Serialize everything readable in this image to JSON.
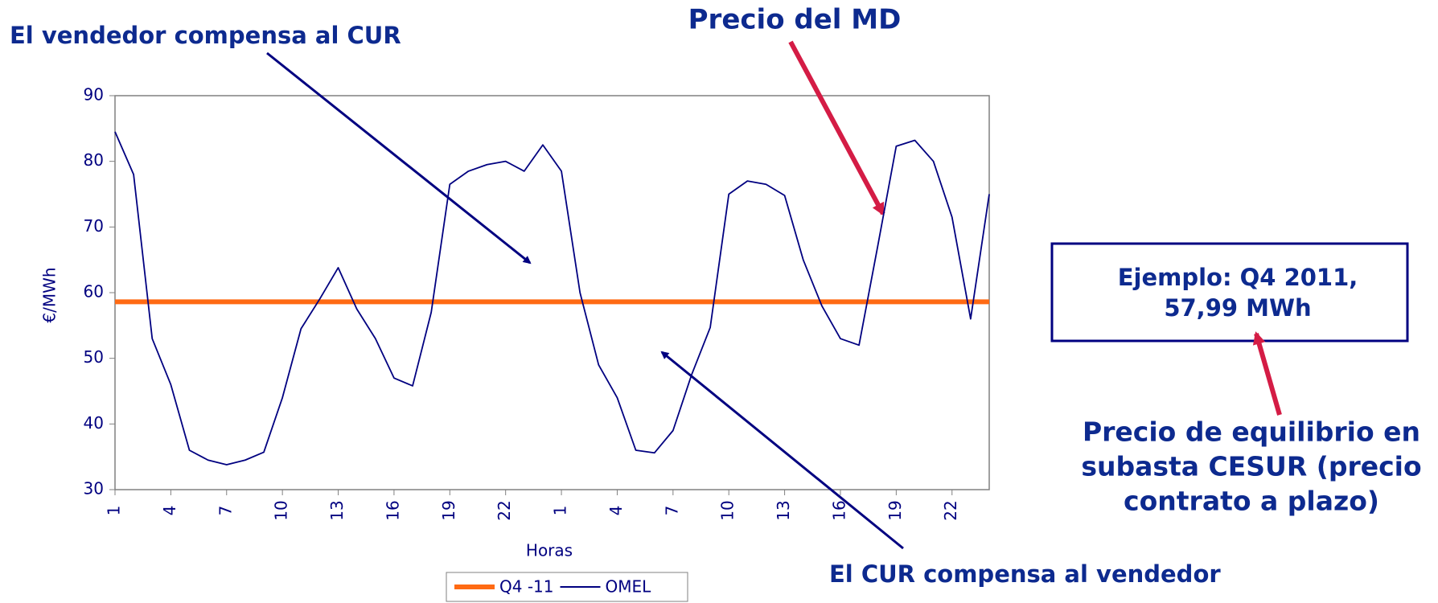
{
  "chart_data": {
    "type": "line",
    "xlabel": "Horas",
    "ylabel": "€/MWh",
    "categories": [
      "1",
      null,
      null,
      "4",
      null,
      null,
      "7",
      null,
      null,
      "10",
      null,
      null,
      "13",
      null,
      null,
      "16",
      null,
      null,
      "19",
      null,
      null,
      "22",
      null,
      null,
      "1",
      null,
      null,
      "4",
      null,
      null,
      "7",
      null,
      null,
      "10",
      null,
      null,
      "13",
      null,
      null,
      "16",
      null,
      null,
      "19",
      null,
      null,
      "22",
      null,
      null
    ],
    "series": [
      {
        "name": "Q4 -11",
        "color": "#ff6a13",
        "values": [
          58.6,
          58.6,
          58.6,
          58.6,
          58.6,
          58.6,
          58.6,
          58.6,
          58.6,
          58.6,
          58.6,
          58.6,
          58.6,
          58.6,
          58.6,
          58.6,
          58.6,
          58.6,
          58.6,
          58.6,
          58.6,
          58.6,
          58.6,
          58.6,
          58.6,
          58.6,
          58.6,
          58.6,
          58.6,
          58.6,
          58.6,
          58.6,
          58.6,
          58.6,
          58.6,
          58.6,
          58.6,
          58.6,
          58.6,
          58.6,
          58.6,
          58.6,
          58.6,
          58.6,
          58.6,
          58.6,
          58.6,
          58.6
        ]
      },
      {
        "name": "OMEL",
        "color": "#000080",
        "values": [
          84.5,
          78,
          53,
          46,
          36,
          34.5,
          33.8,
          34.5,
          35.7,
          44,
          54.5,
          59,
          63.8,
          57.5,
          53,
          47,
          45.8,
          57,
          76.5,
          78.5,
          79.5,
          80,
          78.5,
          82.5,
          78.5,
          60,
          49,
          44,
          36,
          35.6,
          39,
          47.5,
          54.7,
          75,
          77,
          76.5,
          74.8,
          65,
          58,
          53,
          52,
          67,
          82.3,
          83.2,
          80,
          71.5,
          56,
          75
        ]
      }
    ],
    "ylim": [
      30,
      90
    ],
    "yticks": [
      30,
      40,
      50,
      60,
      70,
      80,
      90
    ],
    "annotations": [
      "El vendedor compensa al CUR",
      "Precio del MD",
      "El  CUR compensa al vendedor",
      "Ejemplo: Q4 2011,",
      "57,99 MWh",
      "Precio de equilibrio en",
      "subasta CESUR (precio",
      "contrato a plazo)"
    ]
  }
}
